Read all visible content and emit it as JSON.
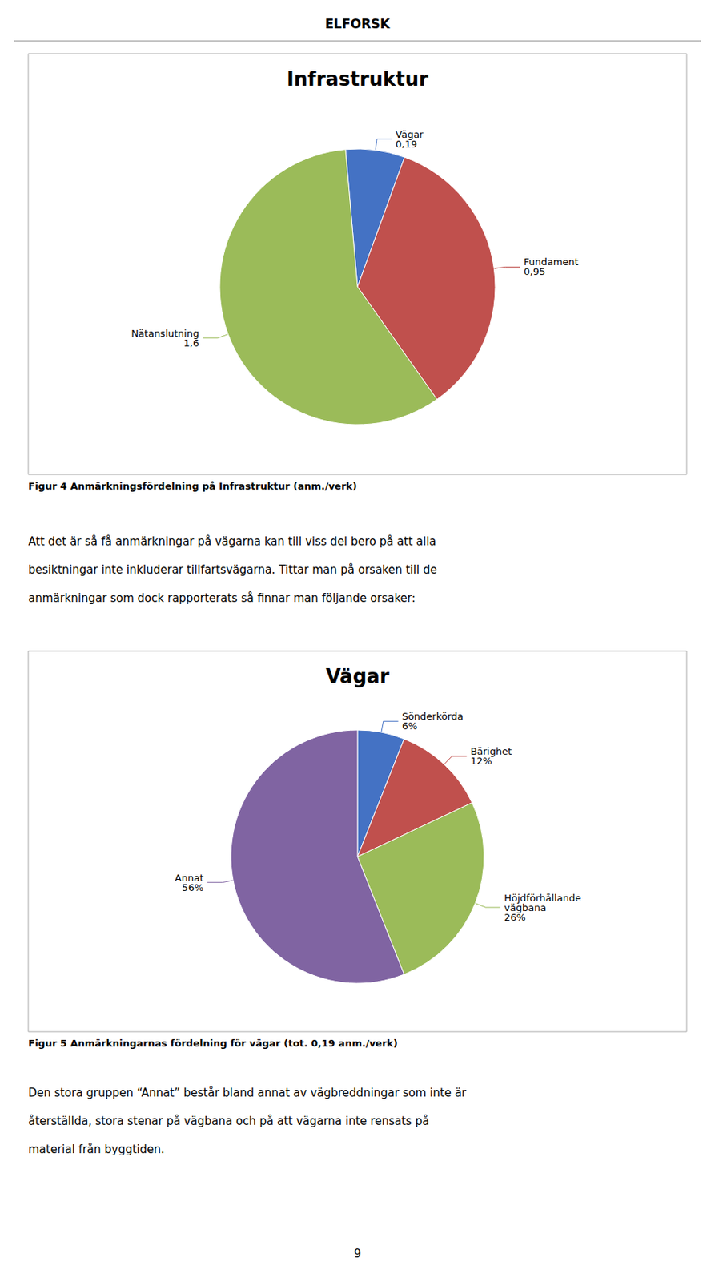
{
  "header": "ELFORSK",
  "footer": "9",
  "chart_data": [
    {
      "type": "pie",
      "title": "Infrastruktur",
      "categories": [
        "Vägar",
        "Fundament",
        "Nätanslutning"
      ],
      "values": [
        0.19,
        0.95,
        1.6
      ],
      "value_labels": [
        "0,19",
        "0,95",
        "1,6"
      ],
      "colors": [
        "#4472C4",
        "#C0504D",
        "#9BBB59"
      ],
      "data_labels": true,
      "caption": "Figur 4 Anmärkningsfördelning på Infrastruktur (anm./verk)",
      "annotations": [
        "Att det är så få anmärkningar på vägarna kan till viss del bero på att alla",
        "besiktningar inte inkluderar tillfartsvägarna. Tittar man på orsaken till de",
        "anmärkningar som dock rapporterats så finnar man följande orsaker:"
      ]
    },
    {
      "type": "pie",
      "title": "Vägar",
      "categories": [
        "Sönderkörda",
        "Bärighet",
        "Höjdförhållande vägbana",
        "Annat"
      ],
      "values": [
        6,
        12,
        26,
        56
      ],
      "value_labels": [
        "6%",
        "12%",
        "26%",
        "56%"
      ],
      "colors": [
        "#4472C4",
        "#C0504D",
        "#9BBB59",
        "#8064A2"
      ],
      "data_labels": true,
      "caption": "Figur 5 Anmärkningarnas fördelning för vägar (tot. 0,19 anm./verk)",
      "annotations": [
        "Den stora gruppen “Annat” består bland annat av vägbreddningar som inte är",
        "återställda, stora stenar på vägbana och på att vägarna inte rensats på",
        "material från byggtiden."
      ]
    }
  ]
}
